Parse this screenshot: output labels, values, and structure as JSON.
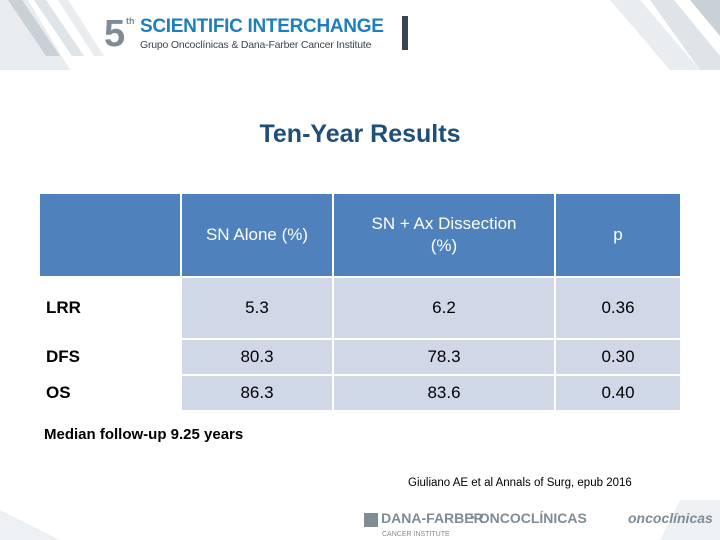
{
  "header": {
    "logo_number": "5",
    "logo_superscript": "th",
    "logo_title": "SCIENTIFIC INTERCHANGE",
    "logo_subtitle": "Grupo Oncoclínicas & Dana-Farber Cancer Institute"
  },
  "slide": {
    "title": "Ten-Year Results",
    "table": {
      "columns": [
        "",
        "SN Alone (%)",
        "SN + Ax Dissection (%)",
        "p"
      ],
      "rows": [
        {
          "label": "LRR",
          "values": [
            "5.3",
            "6.2",
            "0.36"
          ]
        },
        {
          "label": "DFS",
          "values": [
            "80.3",
            "78.3",
            "0.30"
          ]
        },
        {
          "label": "OS",
          "values": [
            "86.3",
            "83.6",
            "0.40"
          ]
        }
      ]
    },
    "footnote": "Median follow-up 9.25 years",
    "citation": "Giuliano AE et al Annals of Surg, epub 2016"
  },
  "footer": {
    "logo1": "DANA-FARBER",
    "logo1_sub": "CANCER INSTITUTE",
    "logo2": "ONCOCLÍNICAS",
    "logo3": "oncoclínicas"
  },
  "colors": {
    "header_blue": "#4f81bd",
    "row_fill": "#d0d8e8",
    "title": "#1f4e79"
  }
}
